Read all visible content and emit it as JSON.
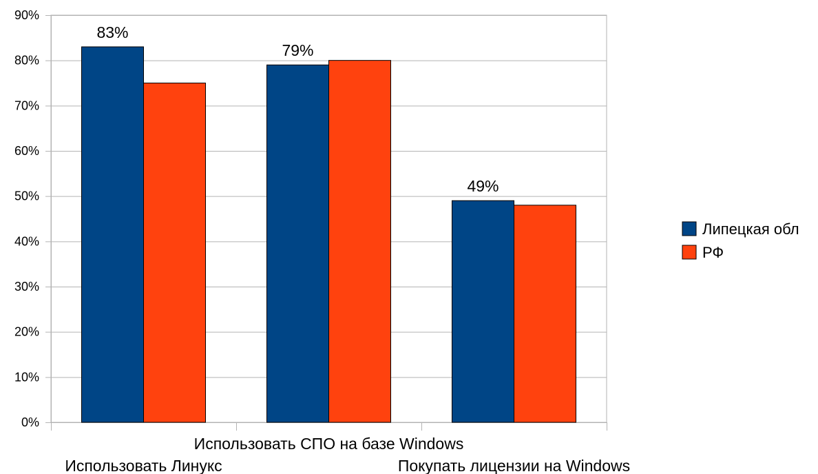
{
  "chart_data": {
    "type": "bar",
    "categories": [
      "Использовать Линукс",
      "Использовать СПО на базе Windows",
      "Покупать лицензии на Windows"
    ],
    "series": [
      {
        "name": "Липецкая обл",
        "values": [
          83,
          79,
          49
        ],
        "color": "#004586",
        "labels": [
          "83%",
          "79%",
          "49%"
        ]
      },
      {
        "name": "РФ",
        "values": [
          75,
          80,
          48
        ],
        "color": "#ff420e",
        "labels": [
          "",
          "",
          ""
        ]
      }
    ],
    "ylim": [
      0,
      90
    ],
    "yticks": [
      "0%",
      "10%",
      "20%",
      "30%",
      "40%",
      "50%",
      "60%",
      "70%",
      "80%",
      "90%"
    ],
    "grid": true,
    "legend_position": "right",
    "xlabel": "",
    "ylabel": "",
    "title": ""
  }
}
